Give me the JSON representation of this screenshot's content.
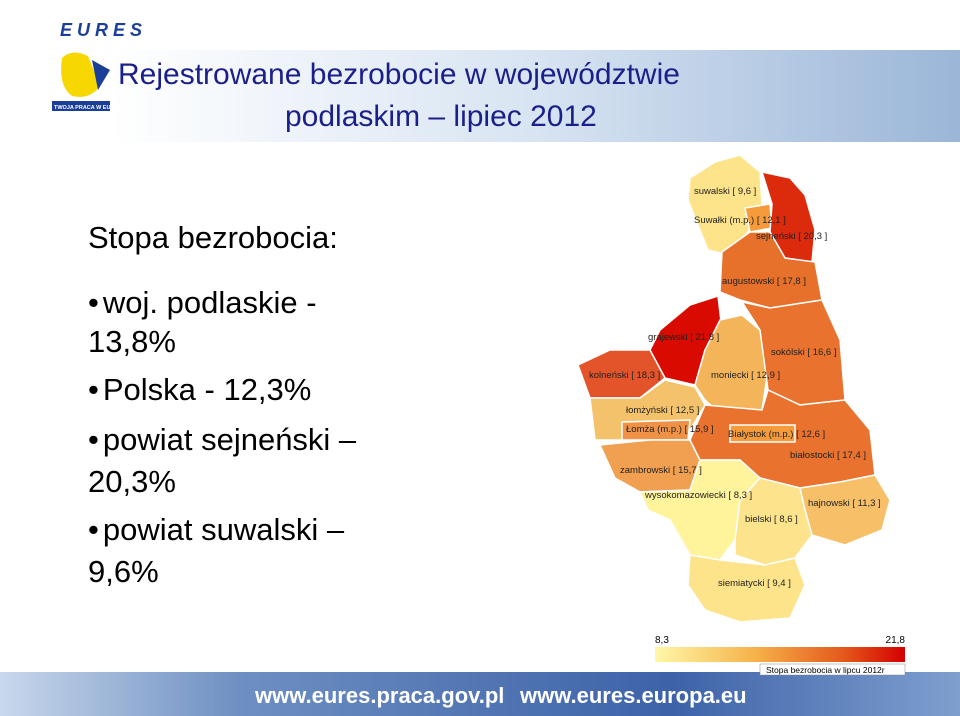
{
  "header": {
    "logo": "E U R E S",
    "logo_tagline": "TWOJA PRACA W EUROPIE",
    "title_line1": "Rejestrowane bezrobocie w województwie",
    "title_line2": "podlaskim – lipiec 2012"
  },
  "body": {
    "heading": "Stopa bezrobocia:",
    "items": [
      [
        "woj. podlaskie -",
        "13,8%"
      ],
      [
        "Polska - 12,3%"
      ],
      [
        "powiat sejneński –",
        "20,3%"
      ],
      [
        "powiat suwalski –",
        "9,6%"
      ]
    ]
  },
  "map": {
    "regions": [
      {
        "label": "suwalski [ 9,6 ]"
      },
      {
        "label": "Suwałki (m.p.) [ 12,1 ]"
      },
      {
        "label": "sejneński [ 20,3 ]"
      },
      {
        "label": "augustowski [ 17,8 ]"
      },
      {
        "label": "grajewski [ 21,8 ]"
      },
      {
        "label": "kolneński [ 18,3 ]"
      },
      {
        "label": "moniecki [ 12,9 ]"
      },
      {
        "label": "sokólski [ 16,6 ]"
      },
      {
        "label": "łomżyński [ 12,5 ]"
      },
      {
        "label": "Łomża (m.p.) [ 15,9 ]"
      },
      {
        "label": "Białystok (m.p.) [ 12,6 ]"
      },
      {
        "label": "białostocki [ 17,4 ]"
      },
      {
        "label": "zambrowski [ 15,7 ]"
      },
      {
        "label": "wysokomazowiecki [ 8,3 ]"
      },
      {
        "label": "hajnowski [ 11,3 ]"
      },
      {
        "label": "bielski [ 8,6 ]"
      },
      {
        "label": "siemiatycki [ 9,4 ]"
      }
    ],
    "legend": {
      "min": "8,3",
      "max": "21,8",
      "caption": "Stopa bezrobocia w lipcu 2012r"
    }
  },
  "footer": {
    "links": [
      "www.eures.praca.gov.pl",
      "www.eures.europa.eu"
    ]
  }
}
